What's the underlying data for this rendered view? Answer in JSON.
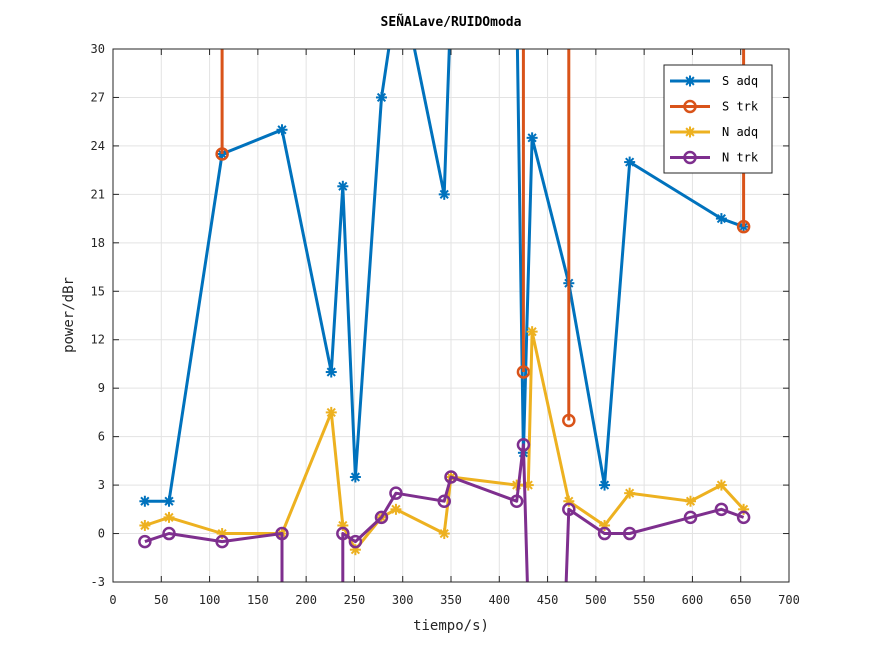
{
  "chart_data": {
    "type": "line",
    "title": "SEÑALave/RUIDOmoda",
    "xlabel": "tiempo/s)",
    "ylabel": "power/dBr",
    "xlim": [
      0,
      700
    ],
    "ylim": [
      -3,
      30
    ],
    "xticks": [
      0,
      50,
      100,
      150,
      200,
      250,
      300,
      350,
      400,
      450,
      500,
      550,
      600,
      650,
      700
    ],
    "yticks": [
      -3,
      0,
      3,
      6,
      9,
      12,
      15,
      18,
      21,
      24,
      27,
      30
    ],
    "grid": true,
    "legend_position": "top-right",
    "series": [
      {
        "name": "S adq",
        "color": "#0072BD",
        "marker": "asterisk",
        "x": [
          33,
          58,
          113,
          175,
          226,
          238,
          251,
          278,
          293,
          302,
          343,
          350,
          418,
          425,
          434,
          472,
          509,
          535,
          630,
          653
        ],
        "y": [
          2,
          2,
          23.5,
          25,
          10,
          21.5,
          3.5,
          27,
          33,
          33,
          21,
          33,
          33,
          5,
          24.5,
          15.5,
          3,
          23,
          19.5,
          19
        ]
      },
      {
        "name": "S trk",
        "color": "#D95319",
        "marker": "circle",
        "x": [
          113,
          113,
          null,
          425,
          425,
          null,
          472,
          472,
          null,
          653,
          653
        ],
        "y": [
          33,
          23.5,
          null,
          10,
          33,
          null,
          7,
          33,
          null,
          19,
          33
        ]
      },
      {
        "name": "N adq",
        "color": "#EDB120",
        "marker": "asterisk",
        "x": [
          33,
          58,
          113,
          175,
          226,
          238,
          251,
          278,
          293,
          343,
          350,
          418,
          430,
          434,
          472,
          509,
          535,
          598,
          630,
          653
        ],
        "y": [
          0.5,
          1,
          0,
          0,
          7.5,
          0.5,
          -1,
          1,
          1.5,
          0,
          3.5,
          3,
          3,
          12.5,
          2,
          0.5,
          2.5,
          2,
          3,
          1.5
        ]
      },
      {
        "name": "N trk",
        "color": "#7E2F8E",
        "marker": "circle",
        "x": [
          33,
          58,
          113,
          175,
          175,
          null,
          238,
          238,
          251,
          278,
          293,
          343,
          350,
          418,
          425,
          430,
          null,
          468,
          472,
          509,
          535,
          598,
          630,
          653
        ],
        "y": [
          -0.5,
          0,
          -0.5,
          0,
          -5,
          null,
          -5,
          0,
          -0.5,
          1,
          2.5,
          2,
          3.5,
          2,
          5.5,
          -5,
          null,
          -5,
          1.5,
          0,
          0,
          1,
          1.5,
          1
        ]
      }
    ]
  }
}
